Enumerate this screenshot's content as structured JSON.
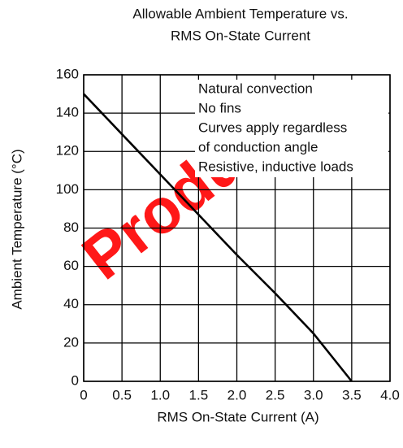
{
  "chart_data": {
    "type": "line",
    "title": [
      "Allowable Ambient Temperature vs.",
      "RMS On-State Current"
    ],
    "x_label": "RMS On-State Current  (A)",
    "y_label": "Ambient Temperature  (°C)",
    "annotations": [
      "Natural convection",
      "No fins",
      "Curves apply regardless",
      "of conduction angle",
      "Resistive, inductive loads"
    ],
    "watermark": "Product",
    "series": [
      {
        "name": "Allowable ambient temperature",
        "color": "#000000",
        "x": [
          0,
          0.5,
          1,
          1.5,
          2,
          2.5,
          3,
          3.5
        ],
        "values": [
          150,
          129,
          108,
          87,
          66,
          46,
          25,
          0
        ]
      }
    ],
    "xlim": [
      0,
      4
    ],
    "xticks": [
      0,
      0.5,
      {
        "value": 1,
        "label": "1.0"
      },
      1.5,
      {
        "value": 2,
        "label": "2.0"
      },
      2.5,
      {
        "value": 3,
        "label": "3.0"
      },
      3.5,
      {
        "value": 4,
        "label": "4.0"
      }
    ],
    "ylim": [
      0,
      160
    ],
    "yticks": [
      0,
      20,
      40,
      60,
      80,
      100,
      120,
      140,
      160
    ],
    "grid": true
  }
}
